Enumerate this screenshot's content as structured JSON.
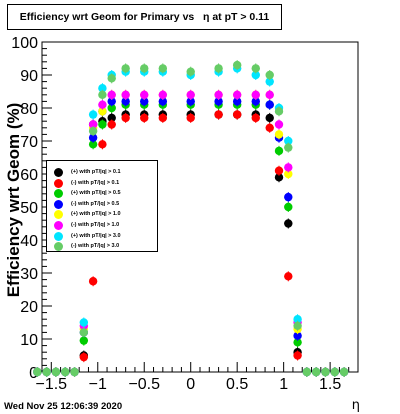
{
  "chart_data": {
    "type": "scatter",
    "title": "Efficiency wrt Geom for Primary vs   η at pT > 0.11",
    "xlabel": "η",
    "ylabel": "Efficiency wrt Geom (%)",
    "xlim": [
      -1.6,
      1.8
    ],
    "ylim": [
      0,
      100
    ],
    "x_ticks": [
      "−1.5",
      "−1",
      "−0.5",
      "0",
      "0.5",
      "1",
      "1.5"
    ],
    "y_ticks": [
      "0",
      "10",
      "20",
      "30",
      "40",
      "50",
      "60",
      "70",
      "80",
      "90",
      "100"
    ],
    "grid": false,
    "legend_position": "middle-left",
    "series": [
      {
        "name": "(+) with pT/|q| > 0.1",
        "color": "#000000",
        "x": [
          -1.65,
          -1.55,
          -1.45,
          -1.35,
          -1.25,
          -1.15,
          -1.05,
          -0.95,
          -0.85,
          -0.7,
          -0.5,
          -0.3,
          0,
          0.3,
          0.5,
          0.7,
          0.85,
          0.95,
          1.05,
          1.15,
          1.25,
          1.35,
          1.45,
          1.55,
          1.65
        ],
        "y": [
          0,
          0,
          0,
          0,
          0,
          5,
          75,
          76,
          77,
          78,
          78,
          78,
          78,
          78,
          78,
          78,
          77,
          59,
          45,
          6,
          0,
          0,
          0,
          0,
          0
        ]
      },
      {
        "name": "(-) with pT/|q| > 0.1",
        "color": "#ff0000",
        "x": [
          -1.65,
          -1.55,
          -1.45,
          -1.35,
          -1.25,
          -1.15,
          -1.05,
          -0.95,
          -0.85,
          -0.7,
          -0.5,
          -0.3,
          0,
          0.3,
          0.5,
          0.7,
          0.85,
          0.95,
          1.05,
          1.15,
          1.25,
          1.35,
          1.45,
          1.55,
          1.65
        ],
        "y": [
          0,
          0,
          0,
          0,
          0,
          4.5,
          27.5,
          69,
          75,
          77,
          77,
          77,
          77,
          78,
          78,
          77,
          74,
          61,
          29,
          5,
          0,
          0,
          0,
          0,
          0
        ]
      },
      {
        "name": "(+) with pT/|q| > 0.5",
        "color": "#00cc00",
        "x": [
          -1.65,
          -1.55,
          -1.45,
          -1.35,
          -1.25,
          -1.15,
          -1.05,
          -0.95,
          -0.85,
          -0.7,
          -0.5,
          -0.3,
          0,
          0.3,
          0.5,
          0.7,
          0.85,
          0.95,
          1.05,
          1.15,
          1.25,
          1.35,
          1.45,
          1.55,
          1.65
        ],
        "y": [
          0,
          0,
          0,
          0,
          0,
          9.5,
          69,
          75,
          80,
          81,
          81,
          81,
          81,
          81,
          81,
          81,
          81,
          67,
          50,
          9,
          0,
          0,
          0,
          0,
          0
        ]
      },
      {
        "name": "(-) with pT/|q| > 0.5",
        "color": "#0000ff",
        "x": [
          -1.65,
          -1.55,
          -1.45,
          -1.35,
          -1.25,
          -1.15,
          -1.05,
          -0.95,
          -0.85,
          -0.7,
          -0.5,
          -0.3,
          0,
          0.3,
          0.5,
          0.7,
          0.85,
          0.95,
          1.05,
          1.15,
          1.25,
          1.35,
          1.45,
          1.55,
          1.65
        ],
        "y": [
          0,
          0,
          0,
          0,
          0,
          12,
          71,
          79,
          82,
          82,
          82,
          82,
          82,
          82,
          82,
          82,
          81,
          71,
          53,
          11,
          0,
          0,
          0,
          0,
          0
        ]
      },
      {
        "name": "(+) with pT/|q| > 1.0",
        "color": "#ffff00",
        "x": [
          -1.65,
          -1.55,
          -1.45,
          -1.35,
          -1.25,
          -1.15,
          -1.05,
          -0.95,
          -0.85,
          -0.7,
          -0.5,
          -0.3,
          0,
          0.3,
          0.5,
          0.7,
          0.85,
          0.95,
          1.05,
          1.15,
          1.25,
          1.35,
          1.45,
          1.55,
          1.65
        ],
        "y": [
          0,
          0,
          0,
          0,
          0,
          13,
          74,
          79,
          84,
          84,
          84,
          84,
          84,
          84,
          84,
          84,
          84,
          72,
          60,
          13,
          0,
          0,
          0,
          0,
          0
        ]
      },
      {
        "name": "(-) with pT/|q| > 1.0",
        "color": "#ff00ff",
        "x": [
          -1.65,
          -1.55,
          -1.45,
          -1.35,
          -1.25,
          -1.15,
          -1.05,
          -0.95,
          -0.85,
          -0.7,
          -0.5,
          -0.3,
          0,
          0.3,
          0.5,
          0.7,
          0.85,
          0.95,
          1.05,
          1.15,
          1.25,
          1.35,
          1.45,
          1.55,
          1.65
        ],
        "y": [
          0,
          0,
          0,
          0,
          0,
          14,
          75,
          81,
          84,
          84,
          84,
          84,
          84,
          84,
          84,
          84,
          84,
          75,
          62,
          15,
          0,
          0,
          0,
          0,
          0
        ]
      },
      {
        "name": "(+) with pT/|q| > 3.0",
        "color": "#00e5ff",
        "x": [
          -1.65,
          -1.55,
          -1.45,
          -1.35,
          -1.25,
          -1.15,
          -1.05,
          -0.95,
          -0.85,
          -0.7,
          -0.5,
          -0.3,
          0,
          0.3,
          0.5,
          0.7,
          0.85,
          0.95,
          1.05,
          1.15,
          1.25,
          1.35,
          1.45,
          1.55,
          1.65
        ],
        "y": [
          0,
          0,
          0,
          0,
          0,
          15,
          78,
          86,
          90,
          91,
          91,
          91,
          90,
          91,
          92,
          90,
          88,
          80,
          70,
          16,
          0,
          0,
          0,
          0,
          0
        ]
      },
      {
        "name": "(-) with pT/|q| > 3.0",
        "color": "#66cc66",
        "x": [
          -1.65,
          -1.55,
          -1.45,
          -1.35,
          -1.25,
          -1.15,
          -1.05,
          -0.95,
          -0.85,
          -0.7,
          -0.5,
          -0.3,
          0,
          0.3,
          0.5,
          0.7,
          0.85,
          0.95,
          1.05,
          1.15,
          1.25,
          1.35,
          1.45,
          1.55,
          1.65
        ],
        "y": [
          0,
          0,
          0,
          0,
          0,
          12,
          73,
          84,
          89,
          92,
          92,
          92,
          91,
          92,
          93,
          92,
          90,
          79,
          68,
          14,
          0,
          0,
          0,
          0,
          0
        ]
      }
    ]
  },
  "footer": {
    "timestamp": "Wed Nov 25 12:06:39 2020"
  }
}
